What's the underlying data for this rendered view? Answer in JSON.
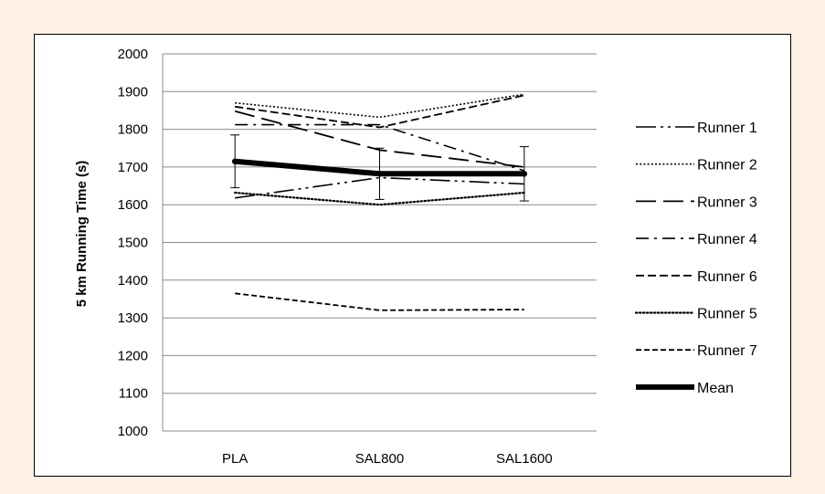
{
  "chart_data": {
    "type": "line",
    "title": "",
    "xlabel": "",
    "ylabel": "5 km Running Time (s)",
    "ylim": [
      1000,
      2000
    ],
    "ytick_step": 100,
    "grid": "horizontal",
    "legend_position": "right",
    "categories": [
      "PLA",
      "SAL800",
      "SAL1600"
    ],
    "series": [
      {
        "name": "Runner 1",
        "values": [
          1618,
          1672,
          1655
        ],
        "dash": "dash-dot-dot",
        "color": "#000000"
      },
      {
        "name": "Runner 2",
        "values": [
          1870,
          1832,
          1893
        ],
        "dash": "dotted",
        "color": "#000000"
      },
      {
        "name": "Runner 3",
        "values": [
          1848,
          1745,
          1700
        ],
        "dash": "long-dash",
        "color": "#000000"
      },
      {
        "name": "Runner 4",
        "values": [
          1812,
          1812,
          1690
        ],
        "dash": "dash-dot",
        "color": "#000000"
      },
      {
        "name": "Runner 6",
        "values": [
          1860,
          1805,
          1890
        ],
        "dash": "dash",
        "color": "#000000"
      },
      {
        "name": "Runner 5",
        "values": [
          1632,
          1600,
          1632
        ],
        "dash": "round-dot",
        "color": "#000000"
      },
      {
        "name": "Runner 7",
        "values": [
          1365,
          1320,
          1322
        ],
        "dash": "short-dash",
        "color": "#000000"
      },
      {
        "name": "Mean",
        "values": [
          1715,
          1682,
          1682
        ],
        "dash": "solid-thick",
        "color": "#000000",
        "error": [
          70,
          68,
          72
        ]
      }
    ]
  }
}
